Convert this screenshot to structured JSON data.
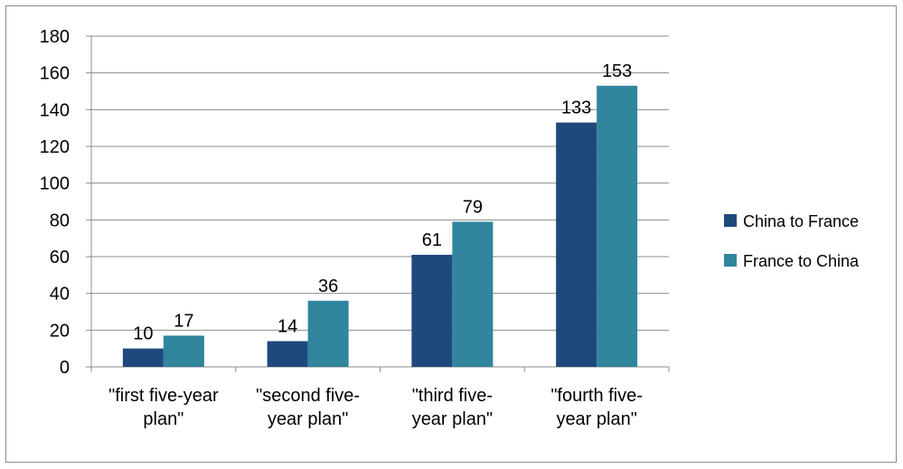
{
  "chart_data": {
    "type": "bar",
    "title": "",
    "xlabel": "",
    "ylabel": "",
    "categories": [
      [
        "\"first five-year",
        "plan\""
      ],
      [
        "\"second five-",
        "year plan\""
      ],
      [
        "\"third five-",
        "year plan\""
      ],
      [
        "\"fourth five-",
        "year plan\""
      ]
    ],
    "series": [
      {
        "name": "China to France",
        "values": [
          10,
          14,
          61,
          133
        ],
        "color": "#1f497d"
      },
      {
        "name": "France to China",
        "values": [
          17,
          36,
          79,
          153
        ],
        "color": "#31859c"
      }
    ],
    "ylim": [
      0,
      180
    ],
    "yticks": [
      0,
      20,
      40,
      60,
      80,
      100,
      120,
      140,
      160,
      180
    ],
    "grid": true,
    "legend": "right"
  }
}
